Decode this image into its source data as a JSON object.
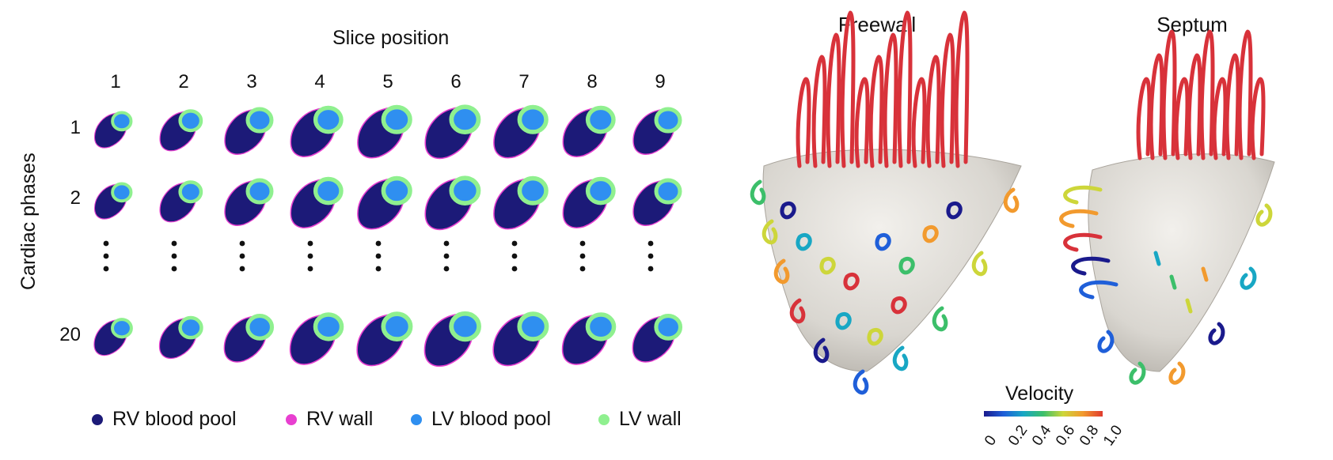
{
  "seg_panel": {
    "x_title": "Slice position",
    "y_title": "Cardiac phases",
    "slices": [
      "1",
      "2",
      "3",
      "4",
      "5",
      "6",
      "7",
      "8",
      "9"
    ],
    "phases": [
      "1",
      "2",
      "20"
    ],
    "ellipsis_marker": "⋮",
    "legend": [
      {
        "label": "RV blood pool",
        "color": "#1c1a78"
      },
      {
        "label": "RV wall",
        "color": "#e83fd0"
      },
      {
        "label": "LV blood pool",
        "color": "#2f8ff0"
      },
      {
        "label": "LV wall",
        "color": "#8ff08f"
      }
    ]
  },
  "mesh_panel": {
    "views": [
      {
        "title": "Freewall"
      },
      {
        "title": "Septum"
      }
    ],
    "colorbar": {
      "title": "Velocity",
      "ticks": [
        "0",
        "0.2",
        "0.4",
        "0.6",
        "0.8",
        "1.0"
      ]
    }
  }
}
